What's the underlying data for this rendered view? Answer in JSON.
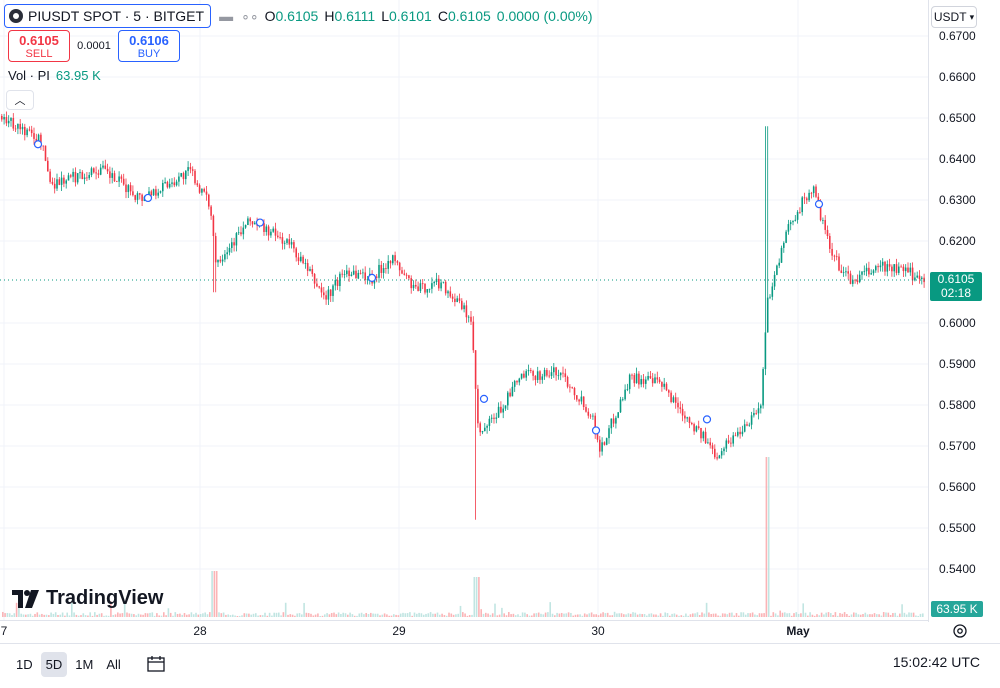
{
  "legend": {
    "symbol": "PIUSDT SPOT · 5 · BITGET",
    "o_key": "O",
    "o": "0.6105",
    "h_key": "H",
    "h": "0.6111",
    "l_key": "L",
    "l": "0.6101",
    "c_key": "C",
    "c": "0.6105",
    "change": "0.0000 (0.00%)"
  },
  "trade": {
    "sell_price": "0.6105",
    "sell_label": "SELL",
    "spread": "0.0001",
    "buy_price": "0.6106",
    "buy_label": "BUY"
  },
  "volume_legend": {
    "label": "Vol · PI",
    "value": "63.95 K"
  },
  "price_axis": {
    "currency": "USDT",
    "ticks": [
      "0.6700",
      "0.6600",
      "0.6500",
      "0.6400",
      "0.6300",
      "0.6200",
      "0.6000",
      "0.5900",
      "0.5800",
      "0.5700",
      "0.5600",
      "0.5500",
      "0.5400"
    ],
    "last_price": "0.6105",
    "countdown": "02:18",
    "volume_label": "63.95 K"
  },
  "time_axis": {
    "ticks": [
      "7",
      "28",
      "29",
      "30",
      "May"
    ]
  },
  "branding": {
    "logo_text": "TradingView"
  },
  "bottom_bar": {
    "ranges": [
      "1D",
      "5D",
      "1M",
      "All"
    ],
    "active_range": "5D",
    "clock": "15:02:42 UTC"
  },
  "colors": {
    "up": "#089981",
    "down": "#f23645",
    "accent": "#2962ff"
  },
  "chart_data": {
    "type": "line",
    "x": [
      "27",
      "27",
      "27",
      "27",
      "28",
      "28",
      "28",
      "28",
      "29",
      "29",
      "29",
      "29",
      "30",
      "30",
      "30",
      "30",
      "May",
      "May",
      "May",
      "May"
    ],
    "series": [
      {
        "values": [
          0.65,
          0.643,
          0.634,
          0.636,
          0.617,
          0.624,
          0.621,
          0.611,
          0.611,
          0.607,
          0.602,
          0.581,
          0.584,
          0.582,
          0.586,
          0.579,
          0.635,
          0.628,
          0.612,
          0.611
        ]
      }
    ],
    "ylim": [
      0.535,
      0.672
    ],
    "last": 0.6105
  }
}
